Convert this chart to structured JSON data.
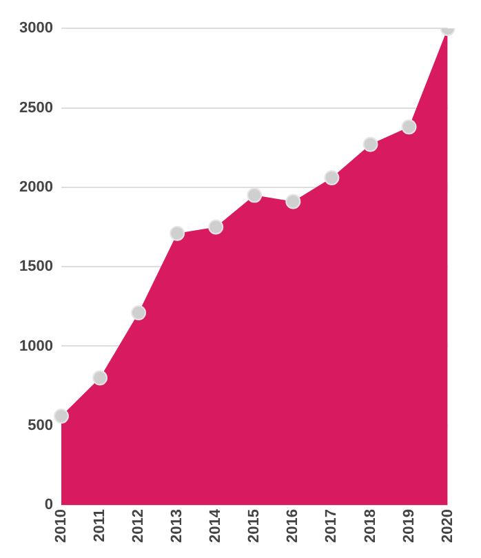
{
  "chart_data": {
    "type": "area",
    "categories": [
      "2010",
      "2011",
      "2012",
      "2013",
      "2014",
      "2015",
      "2016",
      "2017",
      "2018",
      "2019",
      "2020"
    ],
    "series": [
      {
        "color": "#d81b60",
        "values": [
          560,
          800,
          1210,
          1710,
          1750,
          1950,
          1910,
          2060,
          2270,
          2380,
          3000
        ]
      }
    ],
    "ylim": [
      0,
      3000
    ],
    "yticks": [
      0,
      500,
      1000,
      1500,
      2000,
      2500,
      3000
    ],
    "grid": "y",
    "marker": "circle",
    "legend": false
  }
}
